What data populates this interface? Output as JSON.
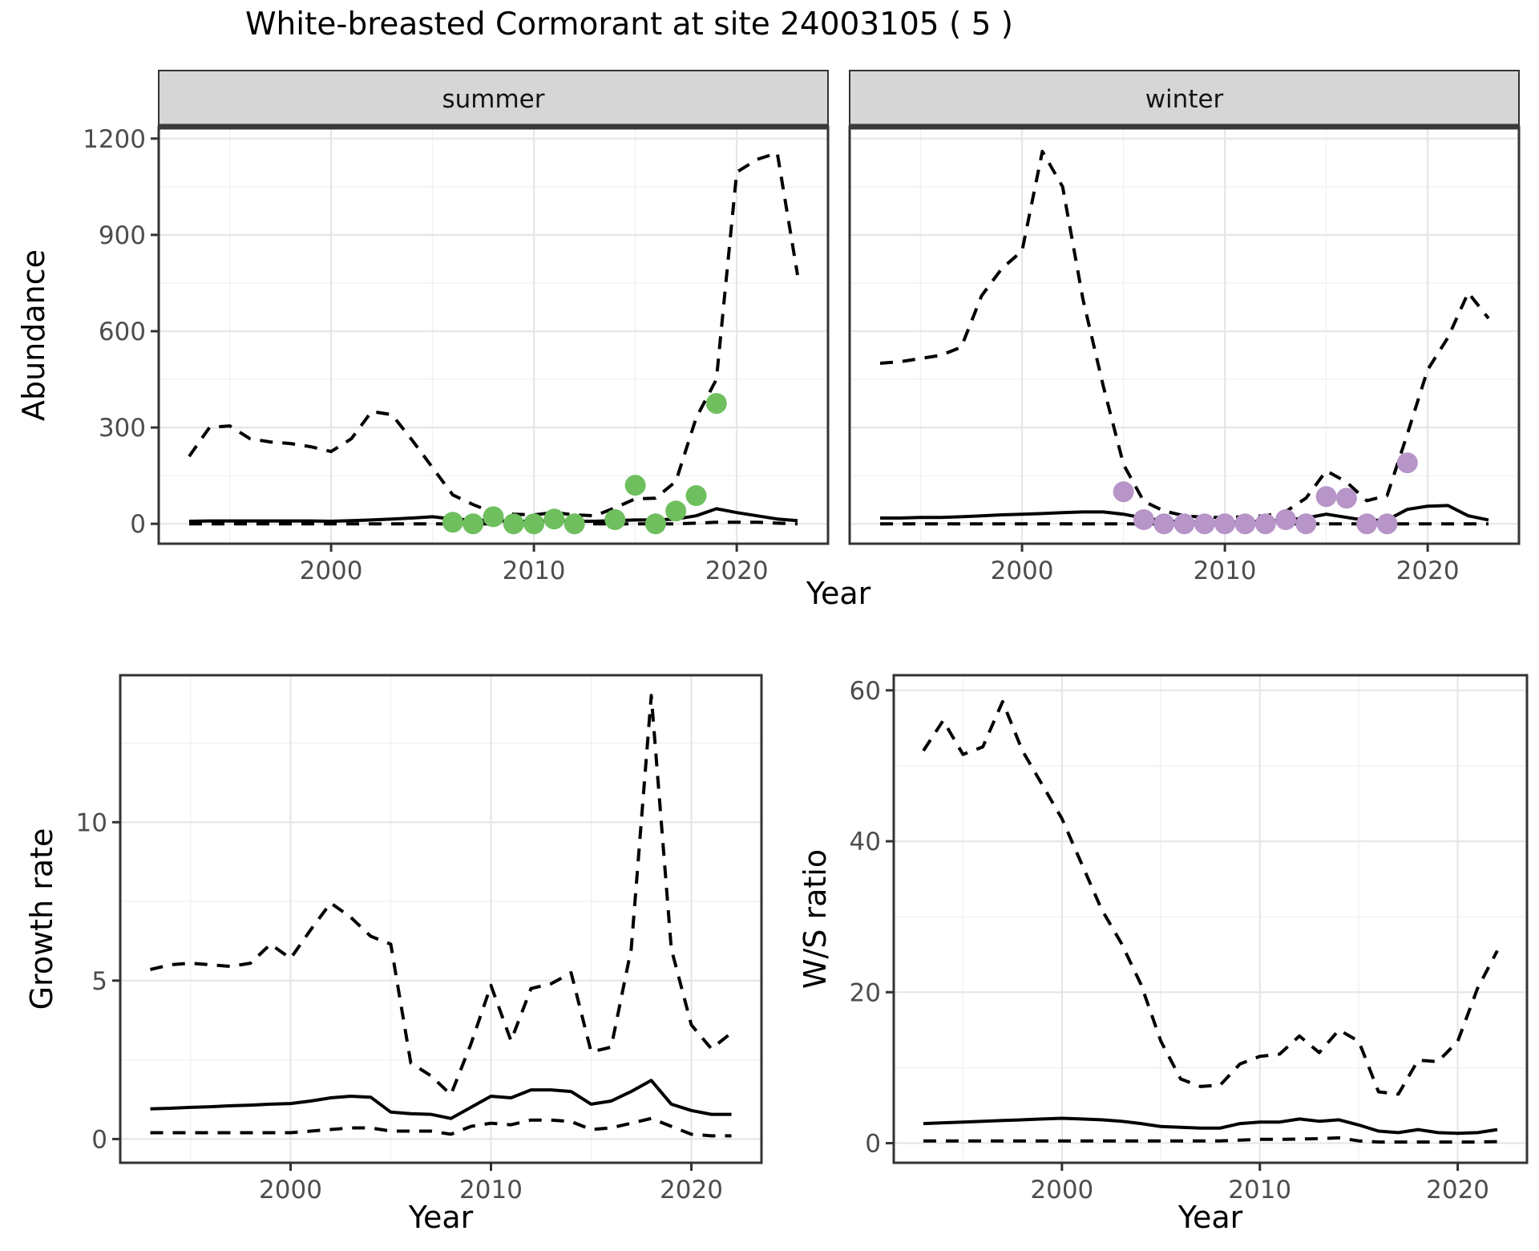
{
  "title": "White-breasted Cormorant at site 24003105 ( 5 )",
  "colors": {
    "points_summer": "#6fbf5f",
    "points_winter": "#b795c8",
    "line": "#000000",
    "strip_bg": "#d6d6d6",
    "strip_border": "#333333",
    "panel_border": "#333333",
    "grid_major": "#e6e6e6",
    "grid_minor": "#f2f2f2",
    "tick_text": "#4d4d4d",
    "tick_mark": "#333333"
  },
  "chart_data": [
    {
      "id": "abundance-summer",
      "type": "line",
      "facet_label": "summer",
      "ylabel": "Abundance",
      "xlabel": "Year",
      "xlim": [
        1991.5,
        2024.5
      ],
      "ylim": [
        -62,
        1237
      ],
      "xticks": [
        2000,
        2010,
        2020
      ],
      "yticks": [
        0,
        300,
        600,
        900,
        1200
      ],
      "xminor": [
        1995,
        2005,
        2015
      ],
      "yminor": [
        150,
        450,
        750,
        1050
      ],
      "grid": true,
      "legend": "none",
      "x": [
        1993,
        1994,
        1995,
        1996,
        1997,
        1998,
        1999,
        2000,
        2001,
        2002,
        2003,
        2004,
        2005,
        2006,
        2007,
        2008,
        2009,
        2010,
        2011,
        2012,
        2013,
        2014,
        2015,
        2016,
        2017,
        2018,
        2019,
        2020,
        2021,
        2022,
        2023
      ],
      "series": [
        {
          "name": "upper_ci",
          "style": "dashed",
          "values": [
            210,
            300,
            305,
            265,
            255,
            250,
            240,
            225,
            265,
            350,
            340,
            260,
            175,
            90,
            60,
            35,
            30,
            28,
            35,
            28,
            25,
            50,
            78,
            80,
            132,
            330,
            450,
            1095,
            1135,
            1155,
            775
          ]
        },
        {
          "name": "estimate",
          "style": "solid",
          "values": [
            8,
            9,
            9,
            9,
            9,
            9,
            9,
            8,
            10,
            12,
            15,
            18,
            22,
            15,
            12,
            10,
            8,
            8,
            10,
            8,
            8,
            10,
            12,
            12,
            15,
            25,
            47,
            35,
            25,
            15,
            10
          ]
        },
        {
          "name": "lower_ci",
          "style": "dashed",
          "values": [
            0,
            0,
            0,
            0,
            0,
            0,
            0,
            0,
            0,
            0,
            0,
            0,
            0,
            0,
            0,
            0,
            0,
            0,
            0,
            0,
            0,
            0,
            0,
            0,
            0,
            2,
            5,
            5,
            5,
            2,
            0
          ]
        }
      ],
      "points": {
        "name": "summer-observations",
        "color_key": "points_summer",
        "x": [
          2006,
          2007,
          2008,
          2009,
          2010,
          2011,
          2012,
          2014,
          2015,
          2016,
          2017,
          2018,
          2019
        ],
        "y": [
          5,
          0,
          22,
          0,
          0,
          15,
          0,
          13,
          120,
          0,
          40,
          88,
          375
        ]
      }
    },
    {
      "id": "abundance-winter",
      "type": "line",
      "facet_label": "winter",
      "ylabel": "",
      "xlabel": "",
      "xlim": [
        1991.5,
        2024.5
      ],
      "ylim": [
        -62,
        1237
      ],
      "xticks": [
        2000,
        2010,
        2020
      ],
      "yticks": [
        0,
        300,
        600,
        900,
        1200
      ],
      "xminor": [
        1995,
        2005,
        2015
      ],
      "yminor": [
        150,
        450,
        750,
        1050
      ],
      "grid": true,
      "legend": "none",
      "x": [
        1993,
        1994,
        1995,
        1996,
        1997,
        1998,
        1999,
        2000,
        2001,
        2002,
        2003,
        2004,
        2005,
        2006,
        2007,
        2008,
        2009,
        2010,
        2011,
        2012,
        2013,
        2014,
        2015,
        2016,
        2017,
        2018,
        2019,
        2020,
        2021,
        2022,
        2023
      ],
      "series": [
        {
          "name": "upper_ci",
          "style": "dashed",
          "values": [
            500,
            505,
            515,
            525,
            550,
            710,
            795,
            850,
            1160,
            1050,
            700,
            430,
            185,
            70,
            40,
            25,
            20,
            20,
            22,
            25,
            38,
            80,
            165,
            130,
            72,
            88,
            280,
            480,
            580,
            720,
            640
          ]
        },
        {
          "name": "estimate",
          "style": "solid",
          "values": [
            18,
            18,
            20,
            20,
            22,
            25,
            28,
            30,
            32,
            35,
            37,
            37,
            30,
            18,
            10,
            6,
            5,
            5,
            6,
            8,
            12,
            18,
            30,
            20,
            10,
            12,
            45,
            55,
            57,
            25,
            12
          ]
        },
        {
          "name": "lower_ci",
          "style": "dashed",
          "values": [
            0,
            0,
            0,
            0,
            0,
            0,
            0,
            0,
            0,
            0,
            0,
            0,
            0,
            0,
            0,
            0,
            0,
            0,
            0,
            0,
            0,
            0,
            0,
            0,
            0,
            0,
            0,
            0,
            0,
            0,
            0
          ]
        }
      ],
      "points": {
        "name": "winter-observations",
        "color_key": "points_winter",
        "x": [
          2005,
          2006,
          2007,
          2008,
          2009,
          2010,
          2011,
          2012,
          2013,
          2014,
          2015,
          2016,
          2017,
          2018,
          2019
        ],
        "y": [
          100,
          13,
          0,
          0,
          0,
          0,
          0,
          0,
          13,
          0,
          85,
          80,
          0,
          0,
          190
        ]
      }
    },
    {
      "id": "growth-rate",
      "type": "line",
      "facet_label": "",
      "ylabel": "Growth rate",
      "xlabel": "Year",
      "xlim": [
        1991.5,
        2023.5
      ],
      "ylim": [
        -0.75,
        14.64
      ],
      "xticks": [
        2000,
        2010,
        2020
      ],
      "yticks": [
        0,
        5,
        10
      ],
      "xminor": [
        1995,
        2005,
        2015
      ],
      "yminor": [
        2.5,
        7.5,
        12.5
      ],
      "grid": true,
      "legend": "none",
      "x": [
        1993,
        1994,
        1995,
        1996,
        1997,
        1998,
        1999,
        2000,
        2001,
        2002,
        2003,
        2004,
        2005,
        2006,
        2007,
        2008,
        2009,
        2010,
        2011,
        2012,
        2013,
        2014,
        2015,
        2016,
        2017,
        2018,
        2019,
        2020,
        2021,
        2022
      ],
      "series": [
        {
          "name": "upper_ci",
          "style": "dashed",
          "values": [
            5.35,
            5.5,
            5.55,
            5.5,
            5.45,
            5.55,
            6.15,
            5.7,
            6.6,
            7.45,
            7.0,
            6.4,
            6.15,
            2.4,
            2.0,
            1.4,
            3.0,
            4.85,
            3.1,
            4.75,
            4.9,
            5.25,
            2.75,
            2.9,
            6.0,
            14.0,
            6.0,
            3.6,
            2.85,
            3.35
          ]
        },
        {
          "name": "estimate",
          "style": "solid",
          "values": [
            0.95,
            0.97,
            1.0,
            1.02,
            1.05,
            1.07,
            1.1,
            1.12,
            1.2,
            1.3,
            1.35,
            1.32,
            0.85,
            0.8,
            0.78,
            0.65,
            1.0,
            1.35,
            1.3,
            1.55,
            1.55,
            1.5,
            1.1,
            1.2,
            1.5,
            1.85,
            1.1,
            0.9,
            0.78,
            0.78
          ]
        },
        {
          "name": "lower_ci",
          "style": "dashed",
          "values": [
            0.2,
            0.2,
            0.2,
            0.2,
            0.2,
            0.2,
            0.2,
            0.2,
            0.25,
            0.3,
            0.35,
            0.35,
            0.25,
            0.25,
            0.25,
            0.15,
            0.4,
            0.5,
            0.45,
            0.6,
            0.6,
            0.55,
            0.3,
            0.35,
            0.5,
            0.65,
            0.4,
            0.15,
            0.1,
            0.1
          ]
        }
      ],
      "points": null
    },
    {
      "id": "ws-ratio",
      "type": "line",
      "facet_label": "",
      "ylabel": "W/S ratio",
      "xlabel": "Year",
      "xlim": [
        1991.5,
        2023.5
      ],
      "ylim": [
        -2.6,
        62.0
      ],
      "xticks": [
        2000,
        2010,
        2020
      ],
      "yticks": [
        0,
        20,
        40,
        60
      ],
      "xminor": [
        1995,
        2005,
        2015
      ],
      "yminor": [
        10,
        30,
        50
      ],
      "grid": true,
      "legend": "none",
      "x": [
        1993,
        1994,
        1995,
        1996,
        1997,
        1998,
        1999,
        2000,
        2001,
        2002,
        2003,
        2004,
        2005,
        2006,
        2007,
        2008,
        2009,
        2010,
        2011,
        2012,
        2013,
        2014,
        2015,
        2016,
        2017,
        2018,
        2019,
        2020,
        2021,
        2022
      ],
      "series": [
        {
          "name": "upper_ci",
          "style": "dashed",
          "values": [
            52,
            56,
            51.5,
            52.5,
            58.5,
            52,
            47.5,
            43,
            37,
            31,
            26.5,
            21,
            13.5,
            8.5,
            7.5,
            7.7,
            10.5,
            11.5,
            11.8,
            14.2,
            12.0,
            15.0,
            13.5,
            6.8,
            6.5,
            11.0,
            10.8,
            13.5,
            20.5,
            25.5
          ]
        },
        {
          "name": "estimate",
          "style": "solid",
          "values": [
            2.6,
            2.7,
            2.8,
            2.9,
            3.0,
            3.1,
            3.2,
            3.3,
            3.2,
            3.1,
            2.9,
            2.6,
            2.2,
            2.1,
            2.0,
            2.0,
            2.6,
            2.8,
            2.8,
            3.2,
            2.9,
            3.1,
            2.4,
            1.6,
            1.4,
            1.8,
            1.4,
            1.3,
            1.4,
            1.8
          ]
        },
        {
          "name": "lower_ci",
          "style": "dashed",
          "values": [
            0.3,
            0.3,
            0.3,
            0.3,
            0.3,
            0.3,
            0.3,
            0.3,
            0.3,
            0.3,
            0.3,
            0.3,
            0.3,
            0.3,
            0.3,
            0.3,
            0.4,
            0.5,
            0.5,
            0.55,
            0.6,
            0.7,
            0.3,
            0.15,
            0.15,
            0.15,
            0.15,
            0.15,
            0.15,
            0.2
          ]
        }
      ],
      "points": null
    }
  ]
}
